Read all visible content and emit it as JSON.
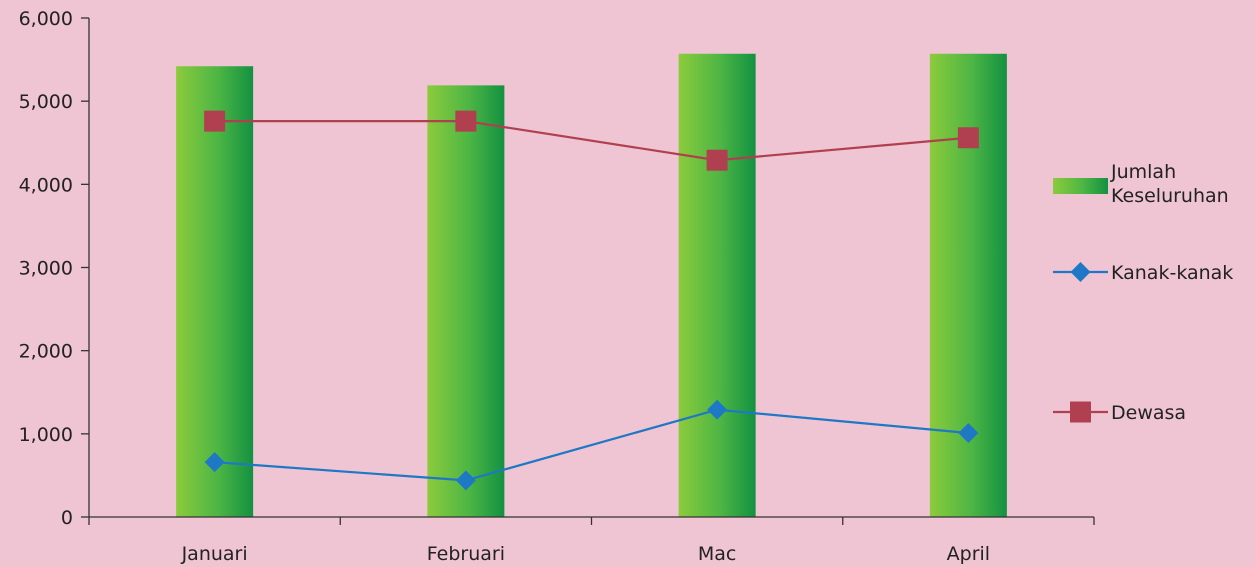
{
  "chart_data": {
    "type": "bar",
    "title": "",
    "xlabel": "",
    "ylabel": "",
    "categories": [
      "Januari",
      "Februari",
      "Mac",
      "April"
    ],
    "ylim": [
      0,
      6000
    ],
    "yticks": [
      "0",
      "1,000",
      "2,000",
      "3,000",
      "4,000",
      "5,000",
      "6,000"
    ],
    "yticks_values": [
      0,
      1000,
      2000,
      3000,
      4000,
      5000,
      6000
    ],
    "grid": false,
    "legend_position": "right",
    "series": [
      {
        "name_lines": [
          "Jumlah",
          "Keseluruhan"
        ],
        "kind": "bar",
        "marker": "none",
        "color": "#3aa845",
        "values": [
          5420,
          5190,
          5570,
          5570
        ]
      },
      {
        "name": "Kanak-kanak",
        "kind": "line",
        "marker": "diamond",
        "color": "#1f78c6",
        "values": [
          660,
          440,
          1290,
          1010
        ]
      },
      {
        "name": "Dewasa",
        "kind": "line",
        "marker": "square",
        "color": "#b04050",
        "values": [
          4760,
          4760,
          4290,
          4560
        ]
      }
    ]
  }
}
